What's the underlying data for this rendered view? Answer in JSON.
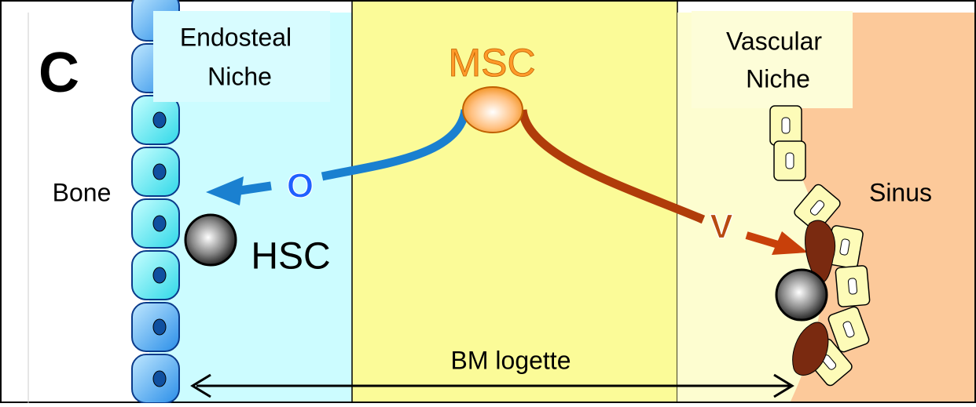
{
  "panel_label": "C",
  "labels": {
    "endosteal_niche": [
      "Endosteal",
      "Niche"
    ],
    "vascular_niche": [
      "Vascular",
      "Niche"
    ],
    "msc": "MSC",
    "bone": "Bone",
    "sinus": "Sinus",
    "hsc": "HSC",
    "osteo": "O",
    "vascular": "V",
    "bm_logette": "BM logette"
  }
}
